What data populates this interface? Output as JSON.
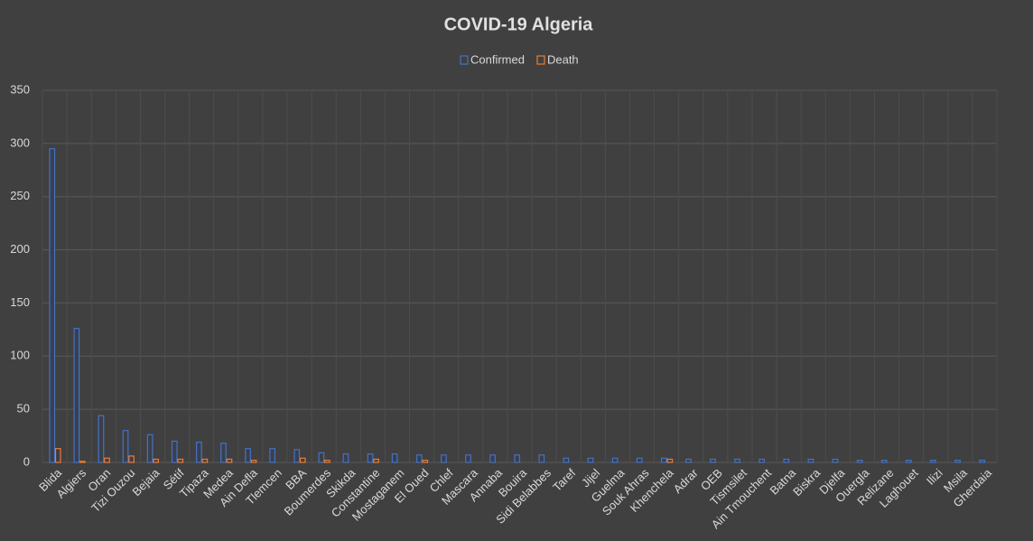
{
  "chart_data": {
    "type": "bar",
    "title": "COVID-19 Algeria",
    "categories": [
      "Blida",
      "Algiers",
      "Oran",
      "Tizi Ouzou",
      "Bejaia",
      "Sétif",
      "Tipaza",
      "Medea",
      "Ain Defla",
      "Tlemcen",
      "BBA",
      "Boumerdes",
      "Skikda",
      "Constantine",
      "Mostaganem",
      "El Oued",
      "Chlef",
      "Mascara",
      "Annaba",
      "Bouira",
      "Sidi Belabbes",
      "Taref",
      "Jijel",
      "Guelma",
      "Souk Ahras",
      "Khenchela",
      "Adrar",
      "OEB",
      "Tismsilet",
      "Ain Tmouchent",
      "Batna",
      "Biskra",
      "Djelfa",
      "Ouergla",
      "Relizane",
      "Laghouet",
      "Ilizi",
      "Msila",
      "Gherdaia"
    ],
    "series": [
      {
        "name": "Confirmed",
        "color": "#4472c4",
        "values": [
          295,
          126,
          44,
          30,
          26,
          20,
          19,
          18,
          13,
          13,
          12,
          9,
          8,
          8,
          8,
          7,
          7,
          7,
          7,
          7,
          7,
          4,
          4,
          4,
          4,
          4,
          3,
          3,
          3,
          3,
          3,
          3,
          3,
          2,
          2,
          2,
          2,
          2,
          2
        ]
      },
      {
        "name": "Death",
        "color": "#ed7d31",
        "values": [
          13,
          1,
          4,
          6,
          3,
          3,
          3,
          3,
          2,
          0,
          4,
          2,
          0,
          3,
          0,
          2,
          0,
          0,
          0,
          0,
          0,
          0,
          0,
          0,
          0,
          3,
          0,
          0,
          0,
          0,
          0,
          0,
          0,
          0,
          0,
          0,
          0,
          0,
          0
        ]
      }
    ],
    "ylim": [
      0,
      350
    ],
    "yticks": [
      0,
      50,
      100,
      150,
      200,
      250,
      300,
      350
    ],
    "grid": true,
    "legend": "top"
  }
}
